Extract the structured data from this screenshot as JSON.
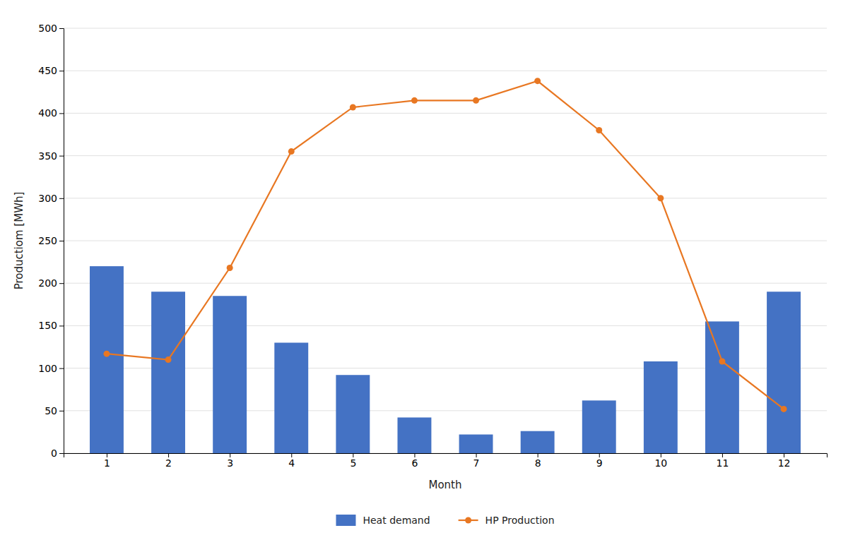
{
  "chart_data": {
    "type": "bar",
    "xlabel": "Month",
    "ylabel": "Productiom [MWh]",
    "x": [
      1,
      2,
      3,
      4,
      5,
      6,
      7,
      8,
      9,
      10,
      11,
      12
    ],
    "xlim": [
      0.3,
      12.7
    ],
    "xticks": [
      1,
      2,
      3,
      4,
      5,
      6,
      7,
      8,
      9,
      10,
      11,
      12
    ],
    "ylim": [
      0,
      500
    ],
    "yticks": [
      0,
      50,
      100,
      150,
      200,
      250,
      300,
      350,
      400,
      450,
      500
    ],
    "grid": true,
    "legend": "bottom",
    "series": [
      {
        "name": "Heat demand",
        "type": "bar",
        "color": "#4472C4",
        "values": [
          220,
          190,
          185,
          130,
          92,
          42,
          22,
          26,
          62,
          108,
          155,
          190
        ]
      },
      {
        "name": "HP Production",
        "type": "line",
        "color": "#E87722",
        "marker": "circle",
        "values": [
          117,
          110,
          218,
          355,
          407,
          415,
          415,
          438,
          380,
          300,
          108,
          52
        ]
      }
    ]
  }
}
